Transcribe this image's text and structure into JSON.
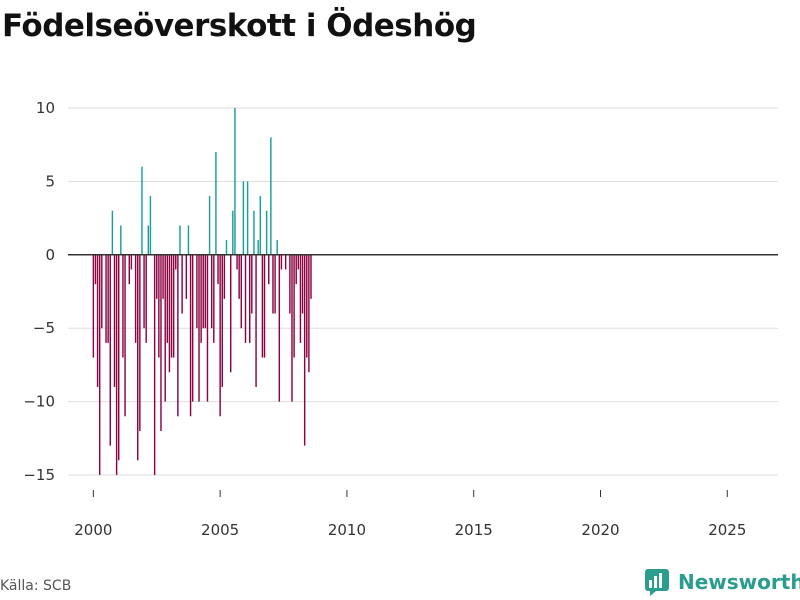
{
  "title": "Födelseöverskott i Ödeshög",
  "source": "Källa: SCB",
  "brand": "Newsworthy",
  "colors": {
    "positive": "#1a9e98",
    "negative": "#8c0342",
    "grid": "#dddddd",
    "zero": "#333333",
    "brand": "#2a9d8f"
  },
  "chart_data": {
    "type": "bar",
    "title": "Födelseöverskott i Ödeshög",
    "xlabel": "",
    "ylabel": "",
    "xlim": [
      1999.0,
      2027.0
    ],
    "ylim": [
      -17,
      11
    ],
    "yticks": [
      10,
      5,
      0,
      -5,
      -10,
      -15
    ],
    "ytick_labels": [
      "10",
      "5",
      "0",
      "−5",
      "−10",
      "−15"
    ],
    "xticks": [
      2000,
      2005,
      2010,
      2015,
      2020,
      2025
    ],
    "xtick_labels": [
      "2000",
      "2005",
      "2010",
      "2015",
      "2020",
      "2025"
    ],
    "start": 2000.0,
    "step": 0.0833333,
    "values": [
      -7,
      -2,
      -9,
      -15,
      -5,
      0,
      -6,
      -6,
      -13,
      3,
      -9,
      -15,
      -14,
      2,
      -7,
      -11,
      0,
      -2,
      -1,
      0,
      -6,
      -14,
      -12,
      6,
      -5,
      -6,
      2,
      4,
      0,
      -15,
      -3,
      -7,
      -12,
      -3,
      -10,
      -6,
      -8,
      -7,
      -7,
      -1,
      -11,
      2,
      -4,
      0,
      -3,
      2,
      -11,
      -10,
      0,
      -5,
      -10,
      -6,
      -5,
      -5,
      -10,
      4,
      -5,
      -6,
      7,
      -2,
      -11,
      -9,
      -3,
      1,
      0,
      -8,
      3,
      10,
      -1,
      -3,
      -5,
      5,
      -6,
      5,
      -6,
      -4,
      3,
      -9,
      1,
      4,
      -7,
      -7,
      3,
      -2,
      8,
      -4,
      -4,
      1,
      -10,
      -1,
      0,
      -1,
      0,
      -4,
      -10,
      -7,
      -2,
      -1,
      -6,
      -4,
      -13,
      -7,
      -8,
      -3
    ]
  }
}
